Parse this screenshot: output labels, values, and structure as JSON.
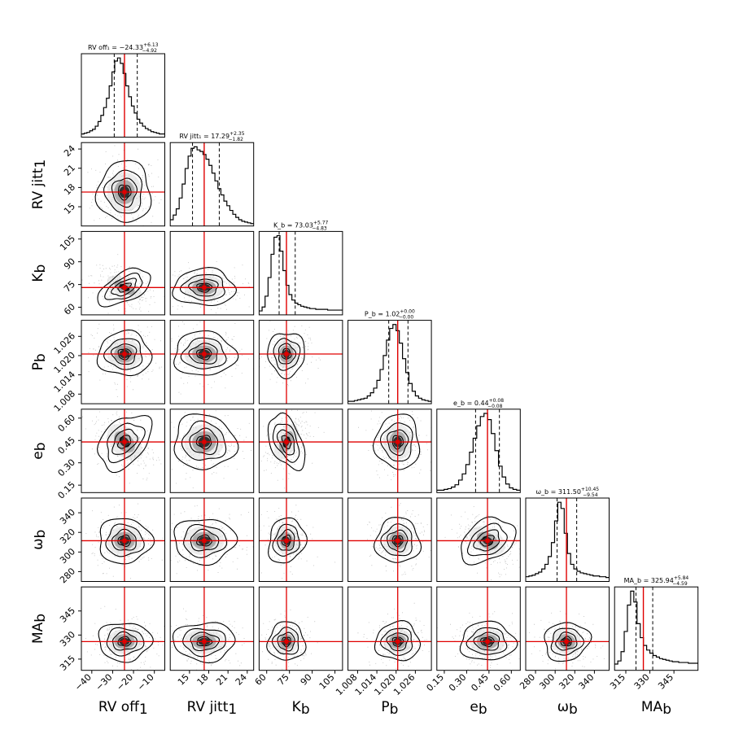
{
  "chart_data": {
    "type": "corner",
    "colors": {
      "truth": "#e00000",
      "contour": "#000000",
      "points": "#8a8a8a",
      "core": "#1a1a1a"
    },
    "params": [
      {
        "label_main": "RV off",
        "label_sub": "1",
        "title": "RV off₁ = −24.33",
        "title_sup": "+6.13",
        "title_sub": "−4.92",
        "value": -24.33,
        "range": [
          -45,
          -5
        ],
        "ticks": [
          -40,
          -30,
          -20,
          -10
        ],
        "tick_labels": [
          "−40",
          "−30",
          "−20",
          "−10"
        ],
        "quantiles": [
          -29.25,
          -18.2
        ],
        "hist": [
          2,
          3,
          4,
          6,
          8,
          12,
          18,
          26,
          36,
          48,
          64,
          82,
          96,
          100,
          93,
          80,
          64,
          50,
          38,
          29,
          21,
          16,
          12,
          9,
          7,
          5,
          4,
          3,
          2,
          2
        ]
      },
      {
        "label_main": "RV jitt",
        "label_sub": "1",
        "title": "RV jitt₁ = 17.29",
        "title_sup": "+2.35",
        "title_sub": "−1.82",
        "value": 17.29,
        "range": [
          12,
          25
        ],
        "ticks": [
          15,
          18,
          21,
          24
        ],
        "tick_labels": [
          "15",
          "18",
          "21",
          "24"
        ],
        "quantiles": [
          15.47,
          19.64
        ],
        "hist": [
          6,
          12,
          20,
          34,
          52,
          72,
          88,
          98,
          100,
          96,
          94,
          90,
          84,
          76,
          66,
          56,
          46,
          38,
          30,
          24,
          18,
          13,
          9,
          6,
          4,
          3,
          2,
          1
        ]
      },
      {
        "label_main": "K",
        "label_sub": "b",
        "title": "K_b = 73.03",
        "title_sup": "+5.77",
        "title_sub": "−4.83",
        "value": 73.03,
        "range": [
          55,
          110
        ],
        "ticks": [
          60,
          75,
          90,
          105
        ],
        "tick_labels": [
          "60",
          "75",
          "90",
          "105"
        ],
        "quantiles": [
          68.2,
          78.8
        ],
        "hist": [
          3,
          8,
          22,
          46,
          76,
          98,
          100,
          80,
          55,
          36,
          24,
          17,
          13,
          11,
          9,
          8,
          7,
          6,
          6,
          5,
          5,
          5,
          5,
          4,
          4,
          4,
          4,
          4
        ]
      },
      {
        "label_main": "P",
        "label_sub": "b",
        "title": "P_b = 1.02",
        "title_sup": "+0.00",
        "title_sub": "−0.00",
        "value": 1.0205,
        "range": [
          1.005,
          1.031
        ],
        "ticks": [
          1.008,
          1.014,
          1.02,
          1.026
        ],
        "tick_labels": [
          "1.008",
          "1.014",
          "1.020",
          "1.026"
        ],
        "quantiles": [
          1.0177,
          1.0237
        ],
        "hist": [
          1,
          1,
          2,
          3,
          4,
          5,
          8,
          12,
          18,
          28,
          42,
          60,
          80,
          95,
          100,
          92,
          76,
          56,
          38,
          24,
          14,
          8,
          5,
          3,
          2,
          1
        ]
      },
      {
        "label_main": "e",
        "label_sub": "b",
        "title": "e_b = 0.44",
        "title_sup": "+0.08",
        "title_sub": "−0.08",
        "value": 0.44,
        "range": [
          0.1,
          0.66
        ],
        "ticks": [
          0.15,
          0.3,
          0.45,
          0.6
        ],
        "tick_labels": [
          "0.15",
          "0.30",
          "0.45",
          "0.60"
        ],
        "quantiles": [
          0.36,
          0.52
        ],
        "hist": [
          1,
          1,
          2,
          3,
          5,
          8,
          14,
          22,
          34,
          50,
          68,
          84,
          96,
          100,
          92,
          74,
          52,
          32,
          18,
          9,
          4,
          2,
          1
        ]
      },
      {
        "label_main": "ω",
        "label_sub": "b",
        "title": "ω_b = 311.50",
        "title_sup": "+10.45",
        "title_sub": "−9.54",
        "value": 311.5,
        "range": [
          270,
          355
        ],
        "ticks": [
          280,
          300,
          320,
          340
        ],
        "tick_labels": [
          "280",
          "300",
          "320",
          "340"
        ],
        "quantiles": [
          301.96,
          321.95
        ],
        "hist": [
          4,
          5,
          6,
          8,
          10,
          14,
          20,
          30,
          48,
          76,
          100,
          92,
          60,
          34,
          20,
          14,
          11,
          9,
          8,
          7,
          6,
          5,
          5,
          4,
          4,
          3
        ]
      },
      {
        "label_main": "MA",
        "label_sub": "b",
        "title": "MA_b = 325.94",
        "title_sup": "+5.84",
        "title_sub": "−4.59",
        "value": 325.94,
        "range": [
          308,
          360
        ],
        "ticks": [
          315,
          330,
          345
        ],
        "tick_labels": [
          "315",
          "330",
          "345"
        ],
        "quantiles": [
          321.35,
          331.78
        ],
        "hist": [
          6,
          10,
          22,
          48,
          82,
          100,
          86,
          58,
          40,
          30,
          24,
          20,
          17,
          15,
          13,
          12,
          11,
          10,
          9,
          9,
          8,
          8,
          8,
          7,
          7,
          7
        ]
      }
    ],
    "correlations": {
      "2-0": -0.55,
      "4-0": -0.4,
      "4-1": 0.05,
      "4-2": 0.45,
      "5-4": -0.35,
      "5-2": -0.15,
      "6-5": -0.1
    }
  }
}
